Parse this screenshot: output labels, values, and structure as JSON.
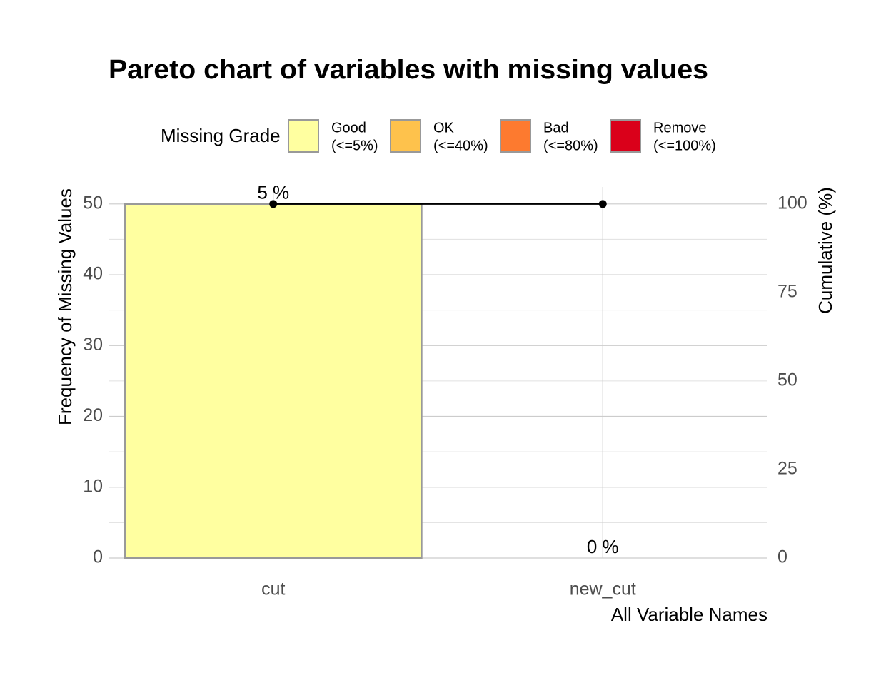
{
  "chart_data": {
    "type": "bar",
    "title": "Pareto chart of variables with missing values",
    "x_label": "All Variable Names",
    "y_label": "Frequency of Missing Values",
    "y2_label": "Cumulative (%)",
    "categories": [
      "cut",
      "new_cut"
    ],
    "values": [
      50,
      0
    ],
    "colors": [
      "#FFFFA0",
      "#FFFFA0"
    ],
    "bar_edge": "#999999",
    "percent": [
      5,
      0
    ],
    "percent_labels": [
      "5 %",
      "0 %"
    ],
    "cumulative": {
      "values": [
        100,
        100
      ],
      "axis": "y2",
      "color": "#000000"
    },
    "ylim": [
      0,
      52.4
    ],
    "yticks": [
      0,
      10,
      20,
      30,
      40,
      50
    ],
    "yminorticks": [
      5,
      15,
      25,
      35,
      45
    ],
    "y2lim": [
      0,
      104.8
    ],
    "y2ticks": [
      0,
      25,
      50,
      75,
      100
    ],
    "grid": true,
    "legend": {
      "position": "top",
      "title": "Missing Grade",
      "items": [
        {
          "label": [
            "Good",
            "(<=5%)"
          ],
          "color": "#FFFFA0"
        },
        {
          "label": [
            "OK",
            "(<=40%)"
          ],
          "color": "#FEC24C"
        },
        {
          "label": [
            "Bad",
            "(<=80%)"
          ],
          "color": "#FD7A2F"
        },
        {
          "label": [
            "Remove",
            "(<=100%)"
          ],
          "color": "#DA001A"
        }
      ]
    }
  }
}
